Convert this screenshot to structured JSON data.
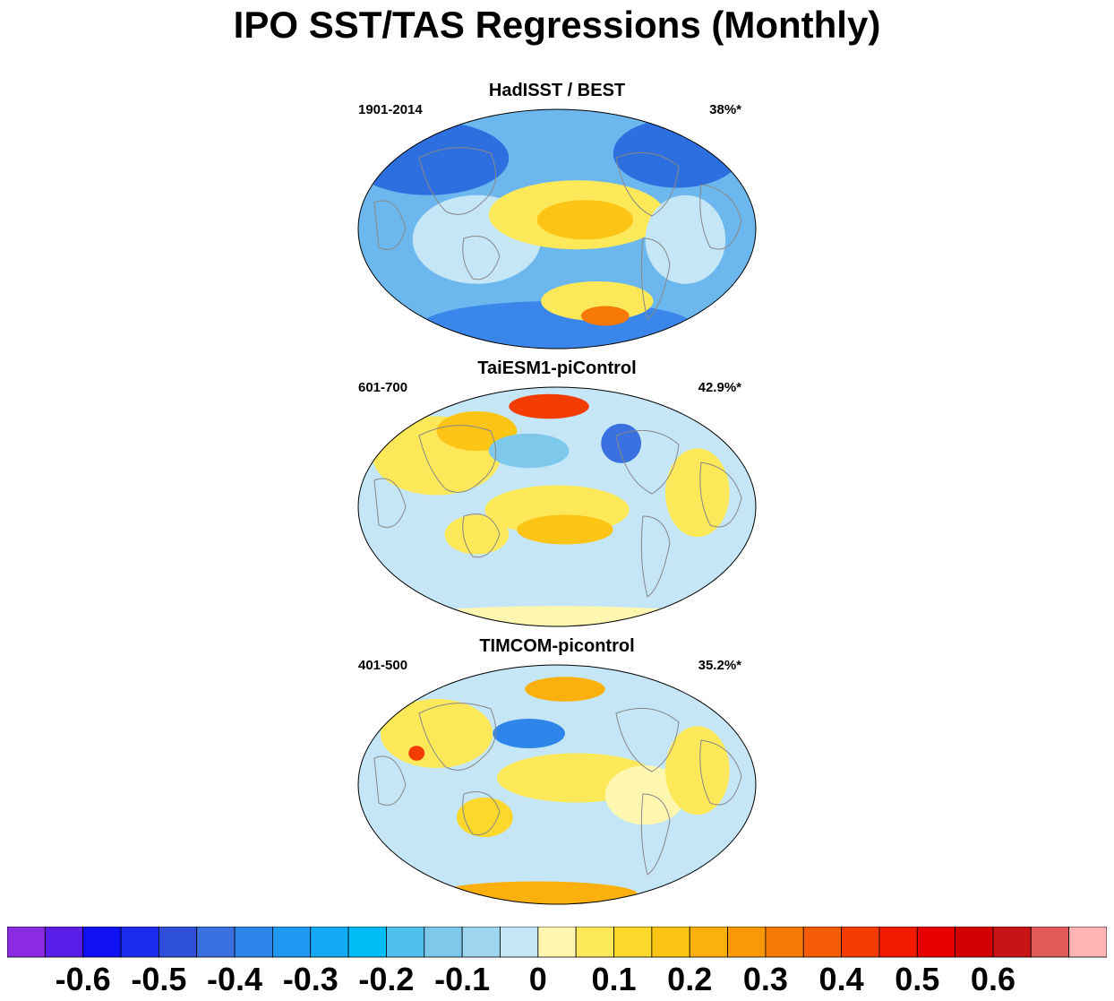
{
  "title": "IPO SST/TAS Regressions (Monthly)",
  "panels": [
    {
      "title": "HadISST / BEST",
      "period": "1901-2014",
      "variance": "38%*",
      "theme": "obs"
    },
    {
      "title": "TaiESM1-piControl",
      "period": "601-700",
      "variance": "42.9%*",
      "theme": "taiesm"
    },
    {
      "title": "TIMCOM-picontrol",
      "period": "401-500",
      "variance": "35.2%*",
      "theme": "timcom"
    }
  ],
  "colorbar": {
    "colors": [
      "#8a2be2",
      "#5a1de8",
      "#1010f5",
      "#1c2cee",
      "#2e4fd8",
      "#3a70e0",
      "#2f86ea",
      "#1e98f0",
      "#13aaf5",
      "#00bdf8",
      "#4fc0ef",
      "#7ec8ec",
      "#9ed6f0",
      "#c4e6f6",
      "#fff7b0",
      "#fde85a",
      "#fdd82c",
      "#fcc516",
      "#fbb00d",
      "#fa9808",
      "#f87a06",
      "#f55a04",
      "#f33c02",
      "#f11a00",
      "#e60000",
      "#d20000",
      "#c81414",
      "#e05a5a",
      "#fcb4b4"
    ],
    "labels": [
      "-0.6",
      "-0.5",
      "-0.4",
      "-0.3",
      "-0.2",
      "-0.1",
      "0",
      "0.1",
      "0.2",
      "0.3",
      "0.4",
      "0.5",
      "0.6"
    ]
  }
}
